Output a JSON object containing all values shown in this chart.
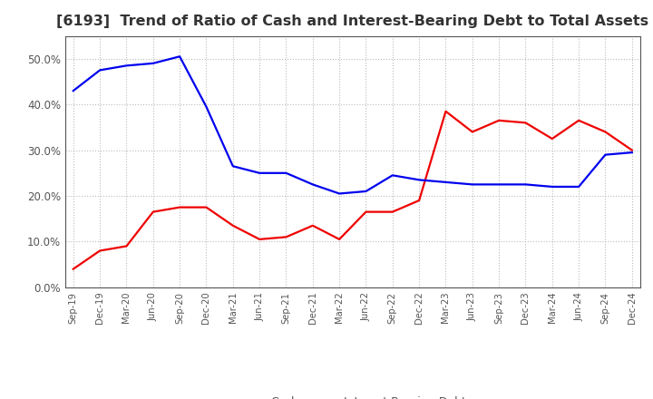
{
  "title": "[6193]  Trend of Ratio of Cash and Interest-Bearing Debt to Total Assets",
  "x_labels": [
    "Sep-19",
    "Dec-19",
    "Mar-20",
    "Jun-20",
    "Sep-20",
    "Dec-20",
    "Mar-21",
    "Jun-21",
    "Sep-21",
    "Dec-21",
    "Mar-22",
    "Jun-22",
    "Sep-22",
    "Dec-22",
    "Mar-23",
    "Jun-23",
    "Sep-23",
    "Dec-23",
    "Mar-24",
    "Jun-24",
    "Sep-24",
    "Dec-24"
  ],
  "cash": [
    4.0,
    8.0,
    9.0,
    16.5,
    17.5,
    17.5,
    13.5,
    10.5,
    11.0,
    13.5,
    10.5,
    16.5,
    16.5,
    19.0,
    38.5,
    34.0,
    36.5,
    36.0,
    32.5,
    36.5,
    34.0,
    30.0
  ],
  "ibd": [
    43.0,
    47.5,
    48.5,
    49.0,
    50.5,
    39.5,
    26.5,
    25.0,
    25.0,
    22.5,
    20.5,
    21.0,
    24.5,
    23.5,
    23.0,
    22.5,
    22.5,
    22.5,
    22.0,
    22.0,
    29.0,
    29.5
  ],
  "cash_color": "#EE0000",
  "ibd_color": "#0000EE",
  "bg_color": "#FFFFFF",
  "plot_bg_color": "#FFFFFF",
  "ylim": [
    0.0,
    55.0
  ],
  "yticks": [
    0,
    10,
    20,
    30,
    40,
    50
  ],
  "title_fontsize": 11.5,
  "title_color": "#333333",
  "legend_cash": "Cash",
  "legend_ibd": "Interest-Bearing Debt",
  "tick_color": "#555555",
  "grid_color": "#BBBBBB",
  "spine_color": "#555555"
}
